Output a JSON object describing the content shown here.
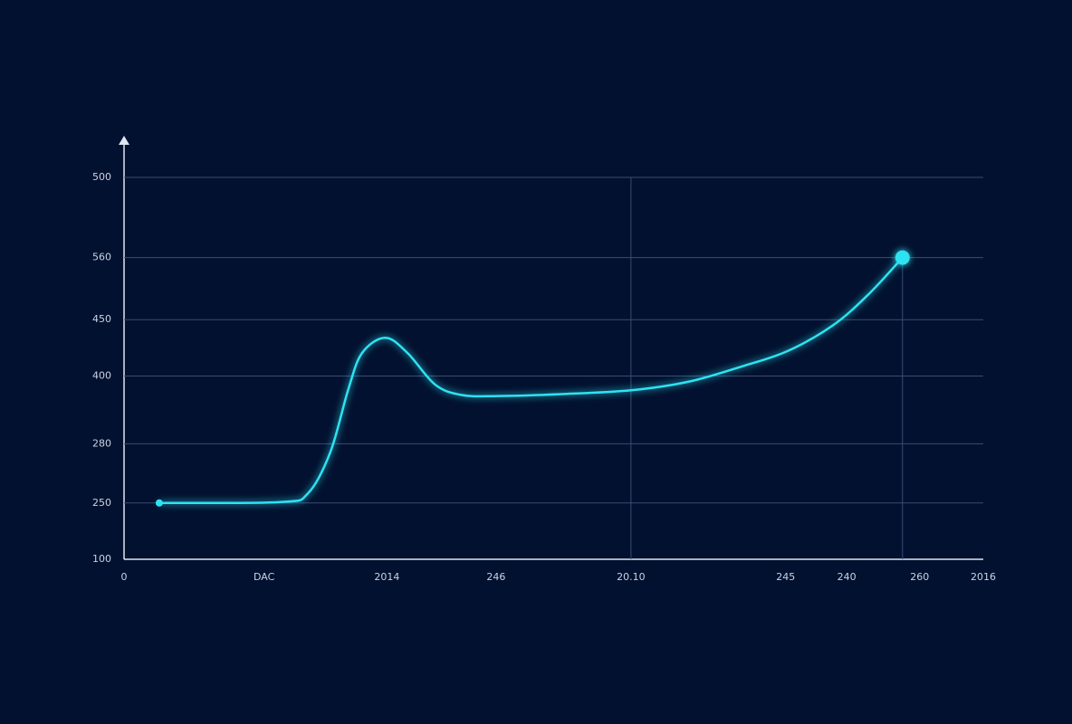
{
  "chart_data": {
    "type": "line",
    "x": [
      4.1,
      18.2,
      21.4,
      24.0,
      26.1,
      27.7,
      30.4,
      33.0,
      36.2,
      39.3,
      43.5,
      50.9,
      59.0,
      65.7,
      71.9,
      77.2,
      82.5,
      86.7,
      90.6
    ],
    "series": [
      {
        "color": "#2de2f2",
        "values": [
          159,
          160,
          169,
          212,
          278,
          316,
          332,
          316,
          283,
          272,
          271,
          273,
          277,
          286,
          302,
          318,
          345,
          378,
          416
        ]
      }
    ],
    "xlim": [
      0,
      100
    ],
    "ylim": [
      100,
      500
    ],
    "xticks": [
      0,
      {
        "value": 16.3,
        "label": "DAC"
      },
      {
        "value": 30.6,
        "label": "2014"
      },
      {
        "value": 43.3,
        "label": "246"
      },
      {
        "value": 59.0,
        "label": "20.10"
      },
      {
        "value": 77.0,
        "label": "245"
      },
      {
        "value": 84.1,
        "label": "240"
      },
      {
        "value": 92.6,
        "label": "260"
      },
      {
        "value": 100,
        "label": "2016"
      }
    ],
    "yticks": [
      100,
      {
        "value": 159,
        "label": "250"
      },
      {
        "value": 221,
        "label": "280"
      },
      {
        "value": 292,
        "label": "400"
      },
      {
        "value": 351,
        "label": "450"
      },
      {
        "value": 416,
        "label": "560"
      },
      500
    ],
    "grid": true
  }
}
